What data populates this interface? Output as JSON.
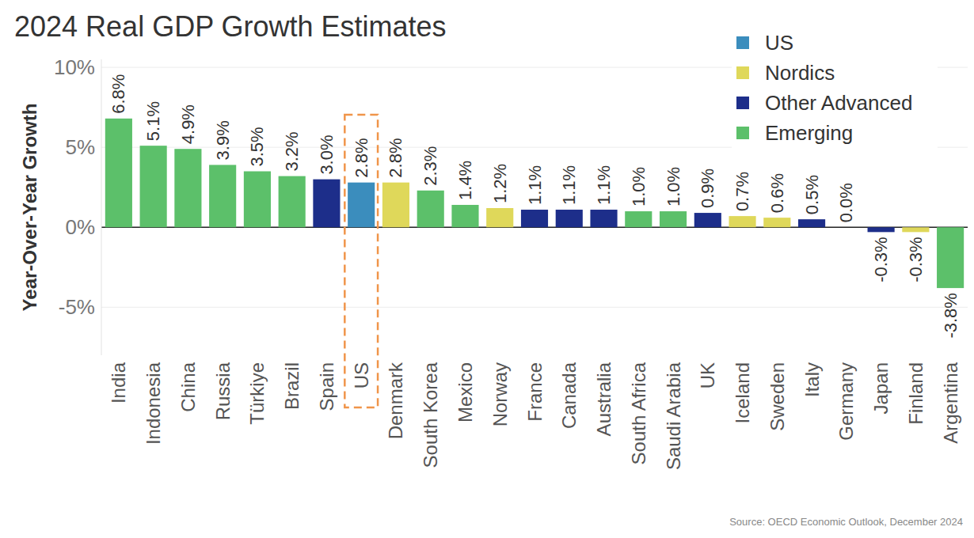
{
  "chart_data": {
    "type": "bar",
    "title": "2024 Real GDP Growth Estimates",
    "y_label": "Year-Over-Year Growth",
    "source": "Source: OECD Economic Outlook, December 2024",
    "categories": [
      "India",
      "Indonesia",
      "China",
      "Russia",
      "Türkiye",
      "Brazil",
      "Spain",
      "US",
      "Denmark",
      "South Korea",
      "Mexico",
      "Norway",
      "France",
      "Canada",
      "Australia",
      "South Africa",
      "Saudi Arabia",
      "UK",
      "Iceland",
      "Sweden",
      "Italy",
      "Germany",
      "Japan",
      "Finland",
      "Argentina"
    ],
    "series": [
      {
        "name": "US",
        "color": "#3b8dbd",
        "values": [
          null,
          null,
          null,
          null,
          null,
          null,
          null,
          2.8,
          null,
          null,
          null,
          null,
          null,
          null,
          null,
          null,
          null,
          null,
          null,
          null,
          null,
          null,
          null,
          null,
          null
        ],
        "value_labels": [
          null,
          null,
          null,
          null,
          null,
          null,
          null,
          "2.8%",
          null,
          null,
          null,
          null,
          null,
          null,
          null,
          null,
          null,
          null,
          null,
          null,
          null,
          null,
          null,
          null,
          null
        ]
      },
      {
        "name": "Nordics",
        "color": "#dfd85a",
        "values": [
          null,
          null,
          null,
          null,
          null,
          null,
          null,
          null,
          2.8,
          null,
          null,
          1.2,
          null,
          null,
          null,
          null,
          null,
          null,
          0.7,
          0.6,
          null,
          null,
          null,
          -0.3,
          null
        ],
        "value_labels": [
          null,
          null,
          null,
          null,
          null,
          null,
          null,
          null,
          "2.8%",
          null,
          null,
          "1.2%",
          null,
          null,
          null,
          null,
          null,
          null,
          "0.7%",
          "0.6%",
          null,
          null,
          null,
          "-0.3%",
          null
        ]
      },
      {
        "name": "Other Advanced",
        "color": "#1d2e8a",
        "values": [
          null,
          null,
          null,
          null,
          null,
          null,
          3.0,
          null,
          null,
          null,
          null,
          null,
          1.1,
          1.1,
          1.1,
          null,
          null,
          0.9,
          null,
          null,
          0.5,
          0.0,
          -0.3,
          null,
          null
        ],
        "value_labels": [
          null,
          null,
          null,
          null,
          null,
          null,
          "3.0%",
          null,
          null,
          null,
          null,
          null,
          "1.1%",
          "1.1%",
          "1.1%",
          null,
          null,
          "0.9%",
          null,
          null,
          "0.5%",
          "0.0%",
          "-0.3%",
          null,
          null
        ]
      },
      {
        "name": "Emerging",
        "color": "#5cc06a",
        "values": [
          6.8,
          5.1,
          4.9,
          3.9,
          3.5,
          3.2,
          null,
          null,
          null,
          2.3,
          1.4,
          null,
          null,
          null,
          null,
          1.0,
          1.0,
          null,
          null,
          null,
          null,
          null,
          null,
          null,
          -3.8
        ],
        "value_labels": [
          "6.8%",
          "5.1%",
          "4.9%",
          "3.9%",
          "3.5%",
          "3.2%",
          null,
          null,
          null,
          "2.3%",
          "1.4%",
          null,
          null,
          null,
          null,
          "1.0%",
          "1.0%",
          null,
          null,
          null,
          null,
          null,
          null,
          null,
          "-3.8%"
        ]
      }
    ],
    "stacked": true,
    "data_labels": true,
    "legend": "top-right",
    "grid": true,
    "ylim": [
      -8,
      10.5
    ],
    "yticks": [
      {
        "value": -5,
        "label": "-5%"
      },
      {
        "value": 0,
        "label": "0%"
      },
      {
        "value": 5,
        "label": "5%"
      },
      {
        "value": 10,
        "label": "10%"
      }
    ]
  }
}
